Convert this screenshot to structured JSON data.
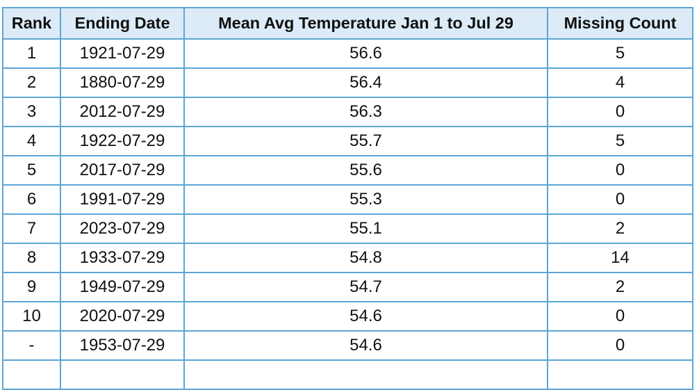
{
  "table": {
    "columns": [
      "Rank",
      "Ending Date",
      "Mean Avg Temperature Jan 1 to Jul 29",
      "Missing Count"
    ],
    "rows": [
      [
        "1",
        "1921-07-29",
        "56.6",
        "5"
      ],
      [
        "2",
        "1880-07-29",
        "56.4",
        "4"
      ],
      [
        "3",
        "2012-07-29",
        "56.3",
        "0"
      ],
      [
        "4",
        "1922-07-29",
        "55.7",
        "5"
      ],
      [
        "5",
        "2017-07-29",
        "55.6",
        "0"
      ],
      [
        "6",
        "1991-07-29",
        "55.3",
        "0"
      ],
      [
        "7",
        "2023-07-29",
        "55.1",
        "2"
      ],
      [
        "8",
        "1933-07-29",
        "54.8",
        "14"
      ],
      [
        "9",
        "1949-07-29",
        "54.7",
        "2"
      ],
      [
        "10",
        "2020-07-29",
        "54.6",
        "0"
      ],
      [
        "-",
        "1953-07-29",
        "54.6",
        "0"
      ],
      [
        "",
        "",
        "",
        ""
      ]
    ]
  },
  "colors": {
    "header_background": "#dcebf7",
    "border": "#5ba6d6",
    "text": "#111111"
  }
}
